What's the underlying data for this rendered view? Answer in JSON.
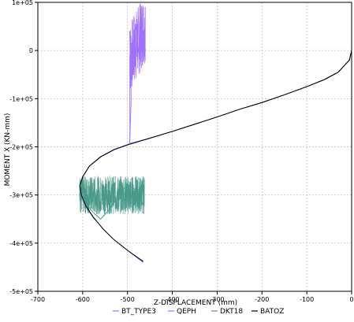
{
  "chart_data": {
    "type": "line",
    "xlabel": "Z-DISPLACEMENT (mm)",
    "ylabel": "MOMENT X (KN-mm)",
    "xlim": [
      -700,
      0
    ],
    "ylim": [
      -500000,
      100000
    ],
    "x_ticks": [
      -700,
      -600,
      -500,
      -400,
      -300,
      -200,
      -100,
      0
    ],
    "x_tick_labels": [
      "-700",
      "-600",
      "-500",
      "-400",
      "-300",
      "-200",
      "-100",
      "0"
    ],
    "y_ticks": [
      100000,
      0,
      -100000,
      -200000,
      -300000,
      -400000,
      -500000
    ],
    "y_tick_labels": [
      "1e+05",
      "0",
      "-1e+05",
      "-2e+05",
      "-3e+05",
      "-4e+05",
      "-5e+05"
    ],
    "grid": true,
    "legend_position": "bottom",
    "series": [
      {
        "name": "BT_TYPE3",
        "color": "#7f7fff",
        "points": [
          [
            0,
            0
          ],
          [
            -5,
            -20000
          ],
          [
            -30,
            -45000
          ],
          [
            -60,
            -60000
          ],
          [
            -100,
            -75000
          ],
          [
            -150,
            -92000
          ],
          [
            -200,
            -108000
          ],
          [
            -250,
            -122000
          ],
          [
            -300,
            -138000
          ],
          [
            -350,
            -153000
          ],
          [
            -400,
            -168000
          ],
          [
            -450,
            -182000
          ],
          [
            -500,
            -195000
          ],
          [
            -530,
            -205000
          ],
          [
            -560,
            -220000
          ],
          [
            -585,
            -240000
          ],
          [
            -600,
            -262000
          ],
          [
            -607,
            -280000
          ],
          [
            -605,
            -300000
          ],
          [
            -595,
            -322000
          ],
          [
            -578,
            -345000
          ],
          [
            -555,
            -370000
          ],
          [
            -530,
            -393000
          ],
          [
            -500,
            -415000
          ],
          [
            -465,
            -440000
          ]
        ]
      },
      {
        "name": "QEPH",
        "color": "#a070ff",
        "points": [
          [
            0,
            0
          ],
          [
            -5,
            -20000
          ],
          [
            -30,
            -45000
          ],
          [
            -60,
            -60000
          ],
          [
            -100,
            -75000
          ],
          [
            -150,
            -92000
          ],
          [
            -200,
            -108000
          ],
          [
            -250,
            -122000
          ],
          [
            -300,
            -138000
          ],
          [
            -350,
            -153000
          ],
          [
            -400,
            -168000
          ],
          [
            -450,
            -182000
          ],
          [
            -495,
            -193000
          ],
          [
            -492,
            -100000
          ],
          [
            -495,
            40000
          ],
          [
            -488,
            -20000
          ],
          [
            -482,
            55000
          ],
          [
            -476,
            -5000
          ],
          [
            -470,
            65000
          ],
          [
            -464,
            20000
          ],
          [
            -460,
            0
          ]
        ]
      },
      {
        "name": "DKT18",
        "color": "#4a9a8a",
        "points": [
          [
            0,
            0
          ],
          [
            -5,
            -20000
          ],
          [
            -30,
            -45000
          ],
          [
            -60,
            -60000
          ],
          [
            -100,
            -75000
          ],
          [
            -150,
            -92000
          ],
          [
            -200,
            -108000
          ],
          [
            -250,
            -122000
          ],
          [
            -300,
            -138000
          ],
          [
            -350,
            -153000
          ],
          [
            -400,
            -168000
          ],
          [
            -450,
            -182000
          ],
          [
            -500,
            -196000
          ],
          [
            -530,
            -206000
          ],
          [
            -560,
            -221000
          ],
          [
            -585,
            -240000
          ],
          [
            -600,
            -262000
          ],
          [
            -605,
            -280000
          ],
          [
            -602,
            -300000
          ],
          [
            -590,
            -320000
          ],
          [
            -575,
            -338000
          ],
          [
            -560,
            -350000
          ],
          [
            -540,
            -330000
          ],
          [
            -520,
            -300000
          ],
          [
            -500,
            -280000
          ],
          [
            -480,
            -290000
          ],
          [
            -465,
            -320000
          ]
        ]
      },
      {
        "name": "BATOZ",
        "color": "#000000",
        "points": [
          [
            0,
            0
          ],
          [
            -5,
            -20000
          ],
          [
            -30,
            -45000
          ],
          [
            -60,
            -60000
          ],
          [
            -100,
            -75000
          ],
          [
            -150,
            -92000
          ],
          [
            -200,
            -108000
          ],
          [
            -250,
            -122000
          ],
          [
            -300,
            -138000
          ],
          [
            -350,
            -153000
          ],
          [
            -400,
            -168000
          ],
          [
            -450,
            -182000
          ],
          [
            -500,
            -196000
          ],
          [
            -530,
            -206000
          ],
          [
            -560,
            -221000
          ],
          [
            -585,
            -240000
          ],
          [
            -600,
            -262000
          ],
          [
            -606,
            -280000
          ],
          [
            -603,
            -300000
          ],
          [
            -593,
            -322000
          ],
          [
            -577,
            -345000
          ],
          [
            -555,
            -370000
          ],
          [
            -530,
            -393000
          ],
          [
            -500,
            -415000
          ],
          [
            -465,
            -438000
          ]
        ]
      }
    ]
  }
}
